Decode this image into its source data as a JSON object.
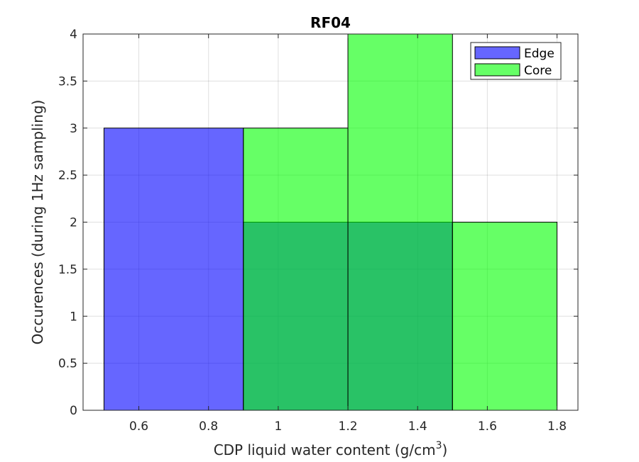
{
  "chart_data": {
    "type": "bar",
    "title": "RF04",
    "xlabel": "CDP liquid water content (g/cm",
    "xlabel_sup": "3",
    "xlabel_suffix": ")",
    "ylabel": "Occurences (during 1Hz sampling)",
    "xlim": [
      0.44,
      1.86
    ],
    "ylim": [
      0,
      4
    ],
    "x_ticks": [
      0.6,
      0.8,
      1,
      1.2,
      1.4,
      1.6,
      1.8
    ],
    "x_tick_labels": [
      "0.6",
      "0.8",
      "1",
      "1.2",
      "1.4",
      "1.6",
      "1.8"
    ],
    "y_ticks": [
      0,
      0.5,
      1,
      1.5,
      2,
      2.5,
      3,
      3.5,
      4
    ],
    "y_tick_labels": [
      "0",
      "0.5",
      "1",
      "1.5",
      "2",
      "2.5",
      "3",
      "3.5",
      "4"
    ],
    "grid": true,
    "legend_position": "top-right",
    "series": [
      {
        "name": "Edge",
        "color": "#0000ff",
        "bins": [
          {
            "x0": 0.5,
            "x1": 0.9,
            "value": 3
          },
          {
            "x0": 0.9,
            "x1": 1.2,
            "value": 2
          },
          {
            "x0": 1.2,
            "x1": 1.5,
            "value": 2
          }
        ]
      },
      {
        "name": "Core",
        "color": "#00ff00",
        "bins": [
          {
            "x0": 0.9,
            "x1": 1.2,
            "value": 3
          },
          {
            "x0": 1.2,
            "x1": 1.5,
            "value": 4
          },
          {
            "x0": 1.5,
            "x1": 1.8,
            "value": 2
          }
        ]
      }
    ]
  }
}
